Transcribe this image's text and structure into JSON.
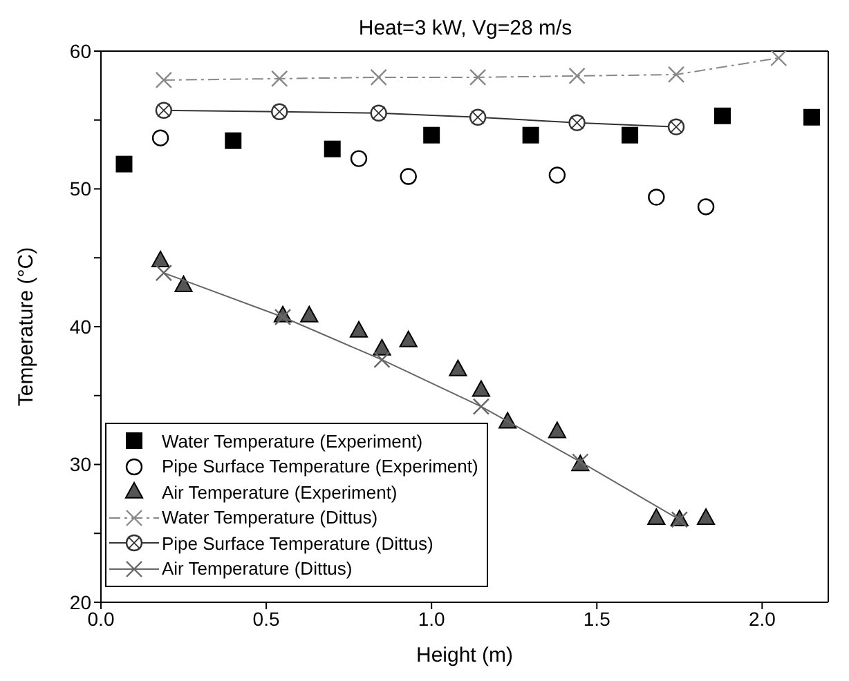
{
  "chart_data": {
    "type": "scatter",
    "title": "Heat=3 kW, Vg=28 m/s",
    "xlabel": "Height (m)",
    "ylabel": "Temperature (°C)",
    "xlim": [
      0,
      2.2
    ],
    "xticks": [
      {
        "value": 0,
        "label": "0.0"
      },
      {
        "value": 0.5,
        "label": "0.5"
      },
      {
        "value": 1,
        "label": "1.0"
      },
      {
        "value": 1.5,
        "label": "1.5"
      },
      {
        "value": 2,
        "label": "2.0"
      }
    ],
    "ylim": [
      20,
      60
    ],
    "yticks": [
      20,
      {
        "value": 25,
        "label": null
      },
      30,
      {
        "value": 35,
        "label": null
      },
      40,
      {
        "value": 45,
        "label": null
      },
      50,
      {
        "value": 55,
        "label": null
      },
      60
    ],
    "grid": false,
    "legend": "bottom left",
    "series": [
      {
        "name": "Water Temperature (Experiment)",
        "marker": "square",
        "color": "#000000",
        "x": [
          0.07,
          0.4,
          0.7,
          1.0,
          1.3,
          1.6,
          1.88,
          2.15
        ],
        "values": [
          51.8,
          53.5,
          52.9,
          53.9,
          53.9,
          53.9,
          55.3,
          55.2
        ]
      },
      {
        "name": "Pipe Surface Temperature (Experiment)",
        "marker": "circle",
        "color": "#000000",
        "x": [
          0.18,
          0.78,
          0.93,
          1.38,
          1.68,
          1.83
        ],
        "values": [
          53.7,
          52.2,
          50.9,
          51.0,
          49.4,
          48.7
        ]
      },
      {
        "name": "Air Temperature (Experiment)",
        "marker": "triangle",
        "color": "#555555",
        "x": [
          0.18,
          0.25,
          0.55,
          0.63,
          0.78,
          0.85,
          0.93,
          1.08,
          1.15,
          1.23,
          1.38,
          1.45,
          1.68,
          1.75,
          1.83
        ],
        "values": [
          44.8,
          43.0,
          40.8,
          40.8,
          39.7,
          38.4,
          39.0,
          36.9,
          35.4,
          33.1,
          32.4,
          30.0,
          26.1,
          26.0,
          26.1
        ]
      },
      {
        "name": "Water Temperature (Dittus)",
        "type": "line",
        "marker": "cross",
        "line_style": "dashed",
        "color": "#888888",
        "x": [
          0.19,
          0.54,
          0.84,
          1.14,
          1.44,
          1.74,
          2.05
        ],
        "values": [
          57.9,
          58.0,
          58.1,
          58.1,
          58.2,
          58.3,
          59.5
        ]
      },
      {
        "name": "Pipe Surface Temperature (Dittus)",
        "type": "line",
        "marker": "circle",
        "line_style": "solid",
        "color": "#333333",
        "x": [
          0.19,
          0.54,
          0.84,
          1.14,
          1.44,
          1.74
        ],
        "values": [
          55.7,
          55.6,
          55.5,
          55.2,
          54.8,
          54.5
        ]
      },
      {
        "name": "Air Temperature (Dittus)",
        "type": "line",
        "marker": "cross",
        "line_style": "solid",
        "color": "#666666",
        "x": [
          0.19,
          0.55,
          0.85,
          1.15,
          1.45,
          1.75
        ],
        "values": [
          43.9,
          40.7,
          37.6,
          34.2,
          30.2,
          26.0
        ]
      }
    ]
  }
}
